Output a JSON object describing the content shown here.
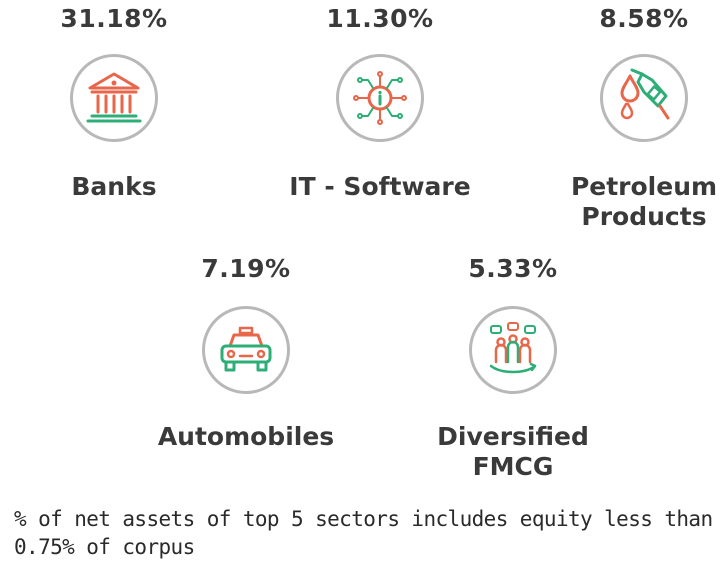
{
  "colors": {
    "accent_orange": "#e8664a",
    "accent_green": "#2dae76",
    "circle_border": "#b8b8b8",
    "text": "#3a3a3a"
  },
  "sectors": [
    {
      "percentage": "31.18%",
      "name_line1": "Banks",
      "name_line2": "",
      "icon": "bank-icon"
    },
    {
      "percentage": "11.30%",
      "name_line1": "IT - Software",
      "name_line2": "",
      "icon": "circuit-chip-icon"
    },
    {
      "percentage": "8.58%",
      "name_line1": "Petroleum",
      "name_line2": "Products",
      "icon": "fuel-nozzle-icon"
    },
    {
      "percentage": "7.19%",
      "name_line1": "Automobiles",
      "name_line2": "",
      "icon": "car-icon"
    },
    {
      "percentage": "5.33%",
      "name_line1": "Diversified",
      "name_line2": "FMCG",
      "icon": "people-group-icon"
    }
  ],
  "footnote": "% of net assets of top 5 sectors includes equity less than 0.75% of corpus"
}
